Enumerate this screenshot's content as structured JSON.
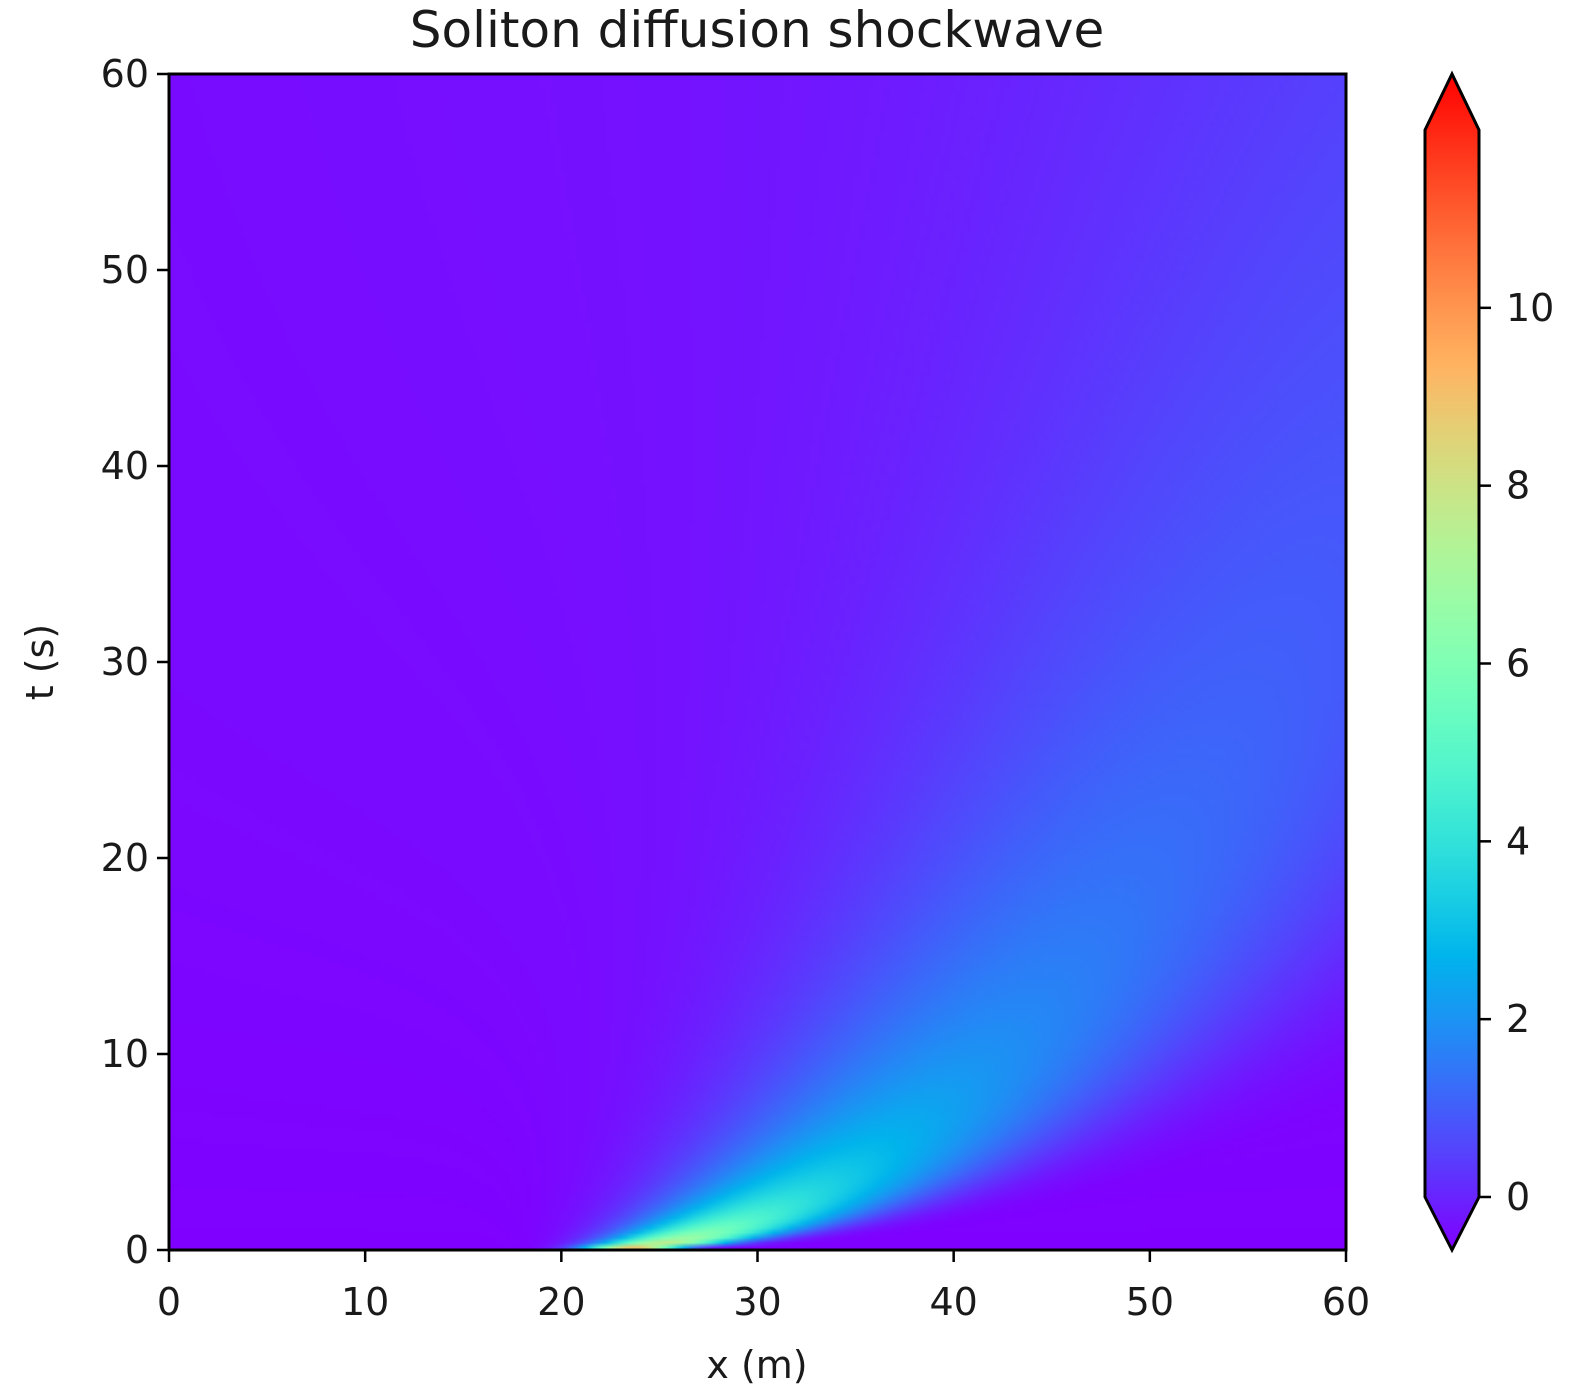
{
  "chart_data": {
    "type": "heatmap",
    "title": "Soliton diffusion shockwave",
    "xlabel": "x (m)",
    "ylabel": "t (s)",
    "xlim": [
      0,
      60
    ],
    "ylim": [
      0,
      60
    ],
    "x_ticks": [
      "0",
      "10",
      "20",
      "30",
      "40",
      "50",
      "60"
    ],
    "y_ticks": [
      "0",
      "10",
      "20",
      "30",
      "40",
      "50",
      "60"
    ],
    "colormap": "rainbow",
    "colorbar": {
      "range": [
        0,
        12
      ],
      "ticks": [
        "0",
        "2",
        "4",
        "6",
        "8",
        "10"
      ],
      "extend": "both",
      "colors": {
        "min": "#6e00f5",
        "max": "#dc0000"
      }
    },
    "field_description_points": [
      {
        "x": 21.5,
        "t": 0.3,
        "value": 7.6
      },
      {
        "x": 25,
        "t": 3,
        "value": 3.0
      },
      {
        "x": 30,
        "t": 8,
        "value": 1.6
      },
      {
        "x": 35,
        "t": 15,
        "value": 1.0
      },
      {
        "x": 40,
        "t": 25,
        "value": 0.7
      },
      {
        "x": 45,
        "t": 38,
        "value": 0.5
      },
      {
        "x": 5,
        "t": 10,
        "value": 0.0
      },
      {
        "x": 55,
        "t": 10,
        "value": 0.0
      },
      {
        "x": 30,
        "t": 55,
        "value": 0.3
      }
    ],
    "grid": false,
    "legend": "none"
  }
}
